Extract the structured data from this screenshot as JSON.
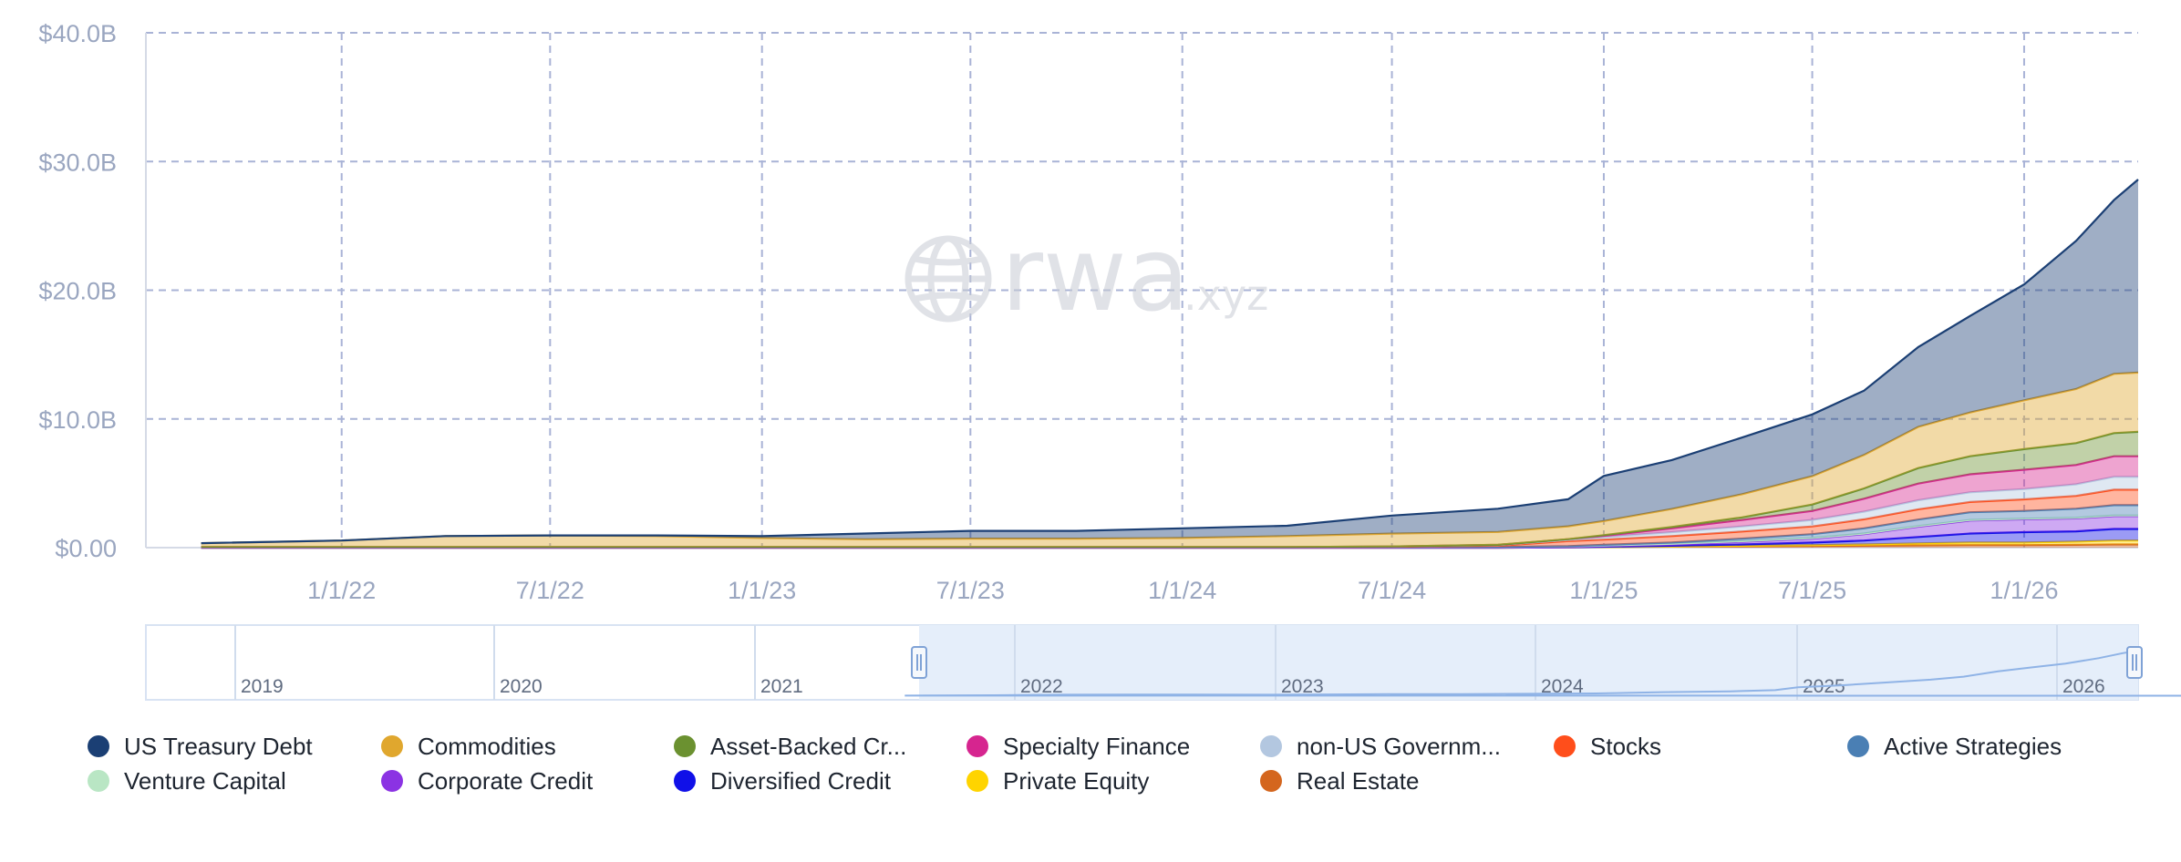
{
  "chart_data": {
    "type": "area",
    "stacked": true,
    "watermark": "rwa.xyz",
    "y_ticks": [
      "$0.00",
      "$10.0B",
      "$20.0B",
      "$30.0B",
      "$40.0B"
    ],
    "x_ticks": [
      "1/1/22",
      "7/1/22",
      "1/1/23",
      "7/1/23",
      "1/1/24",
      "7/1/24",
      "1/1/25",
      "7/1/25",
      "1/1/26"
    ],
    "ylim": [
      0,
      40
    ],
    "grid": true,
    "legend_position": "bottom",
    "navigator": {
      "year_labels": [
        "2019",
        "2020",
        "2021",
        "2022",
        "2023",
        "2024",
        "2025",
        "2026"
      ]
    },
    "x": [
      "2021-09-01",
      "2022-01-01",
      "2022-04-01",
      "2022-07-01",
      "2022-10-01",
      "2023-01-01",
      "2023-04-01",
      "2023-07-01",
      "2023-10-01",
      "2024-01-01",
      "2024-04-01",
      "2024-07-01",
      "2024-10-01",
      "2024-12-01",
      "2025-01-01",
      "2025-03-01",
      "2025-05-01",
      "2025-07-01",
      "2025-08-15",
      "2025-10-01",
      "2025-11-15",
      "2026-01-01",
      "2026-02-15",
      "2026-03-20",
      "2026-04-10"
    ],
    "series": [
      {
        "name": "US Treasury Debt",
        "color": "#1b3f74",
        "values": [
          0,
          0,
          0,
          0,
          0.05,
          0.15,
          0.45,
          0.6,
          0.6,
          0.75,
          0.8,
          1.4,
          1.8,
          2.1,
          3.5,
          3.8,
          4.4,
          4.8,
          5.0,
          6.2,
          7.5,
          9.0,
          11.5,
          13.5,
          15.0
        ]
      },
      {
        "name": "Commodities",
        "color": "#e0a72e",
        "values": [
          0.3,
          0.5,
          0.85,
          0.9,
          0.85,
          0.7,
          0.6,
          0.65,
          0.65,
          0.7,
          0.85,
          1.0,
          1.0,
          1.0,
          1.1,
          1.4,
          1.8,
          2.2,
          2.6,
          3.2,
          3.4,
          3.8,
          4.2,
          4.6,
          4.6
        ]
      },
      {
        "name": "Asset-Backed Cr...",
        "color": "#6b9130",
        "values": [
          0,
          0,
          0,
          0,
          0,
          0,
          0,
          0,
          0,
          0,
          0,
          0,
          0,
          0,
          0.05,
          0.1,
          0.2,
          0.5,
          0.8,
          1.2,
          1.4,
          1.6,
          1.7,
          1.8,
          1.9
        ]
      },
      {
        "name": "Specialty Finance",
        "color": "#d6258f",
        "values": [
          0,
          0,
          0,
          0,
          0,
          0,
          0,
          0,
          0,
          0,
          0,
          0,
          0.02,
          0.05,
          0.1,
          0.3,
          0.5,
          0.7,
          1.0,
          1.3,
          1.4,
          1.5,
          1.5,
          1.6,
          1.6
        ]
      },
      {
        "name": "non-US Governm...",
        "color": "#b3c7e0",
        "values": [
          0,
          0,
          0,
          0,
          0,
          0,
          0,
          0,
          0,
          0,
          0,
          0.02,
          0.05,
          0.1,
          0.2,
          0.3,
          0.4,
          0.5,
          0.6,
          0.7,
          0.75,
          0.8,
          0.9,
          1.0,
          1.0
        ]
      },
      {
        "name": "Stocks",
        "color": "#ff4e1b",
        "values": [
          0,
          0,
          0,
          0,
          0,
          0,
          0,
          0,
          0,
          0,
          0,
          0.02,
          0.1,
          0.4,
          0.4,
          0.5,
          0.55,
          0.6,
          0.7,
          0.8,
          0.8,
          0.9,
          1.0,
          1.2,
          1.2
        ]
      },
      {
        "name": "Active Strategies",
        "color": "#4a7fb4",
        "values": [
          0,
          0,
          0,
          0,
          0,
          0,
          0,
          0,
          0,
          0,
          0,
          0,
          0,
          0.02,
          0.05,
          0.1,
          0.2,
          0.3,
          0.4,
          0.5,
          0.6,
          0.6,
          0.7,
          0.8,
          0.8
        ]
      },
      {
        "name": "Venture Capital",
        "color": "#b9e6c4",
        "values": [
          0.05,
          0.05,
          0.05,
          0.05,
          0.05,
          0.05,
          0.05,
          0.05,
          0.05,
          0.05,
          0.05,
          0.05,
          0.05,
          0.05,
          0.05,
          0.05,
          0.05,
          0.05,
          0.05,
          0.05,
          0.05,
          0.05,
          0.05,
          0.05,
          0.05
        ]
      },
      {
        "name": "Corporate Credit",
        "color": "#8b33e3",
        "values": [
          0,
          0,
          0,
          0,
          0,
          0,
          0,
          0,
          0,
          0,
          0,
          0,
          0,
          0.02,
          0.05,
          0.1,
          0.2,
          0.3,
          0.5,
          0.8,
          1.0,
          1.0,
          1.0,
          1.0,
          1.0
        ]
      },
      {
        "name": "Diversified Credit",
        "color": "#1010e8",
        "values": [
          0,
          0,
          0,
          0,
          0,
          0,
          0,
          0,
          0,
          0,
          0,
          0,
          0,
          0,
          0.02,
          0.05,
          0.1,
          0.2,
          0.3,
          0.5,
          0.7,
          0.8,
          0.8,
          0.9,
          0.9
        ]
      },
      {
        "name": "Private Equity",
        "color": "#ffd400",
        "values": [
          0,
          0,
          0,
          0,
          0,
          0,
          0,
          0,
          0,
          0,
          0,
          0,
          0,
          0,
          0,
          0.02,
          0.05,
          0.08,
          0.1,
          0.15,
          0.2,
          0.2,
          0.25,
          0.3,
          0.3
        ]
      },
      {
        "name": "Real Estate",
        "color": "#d4661e",
        "values": [
          0,
          0,
          0,
          0,
          0,
          0,
          0,
          0,
          0,
          0,
          0,
          0,
          0,
          0.02,
          0.05,
          0.08,
          0.1,
          0.12,
          0.15,
          0.18,
          0.2,
          0.2,
          0.22,
          0.25,
          0.25
        ]
      }
    ]
  }
}
